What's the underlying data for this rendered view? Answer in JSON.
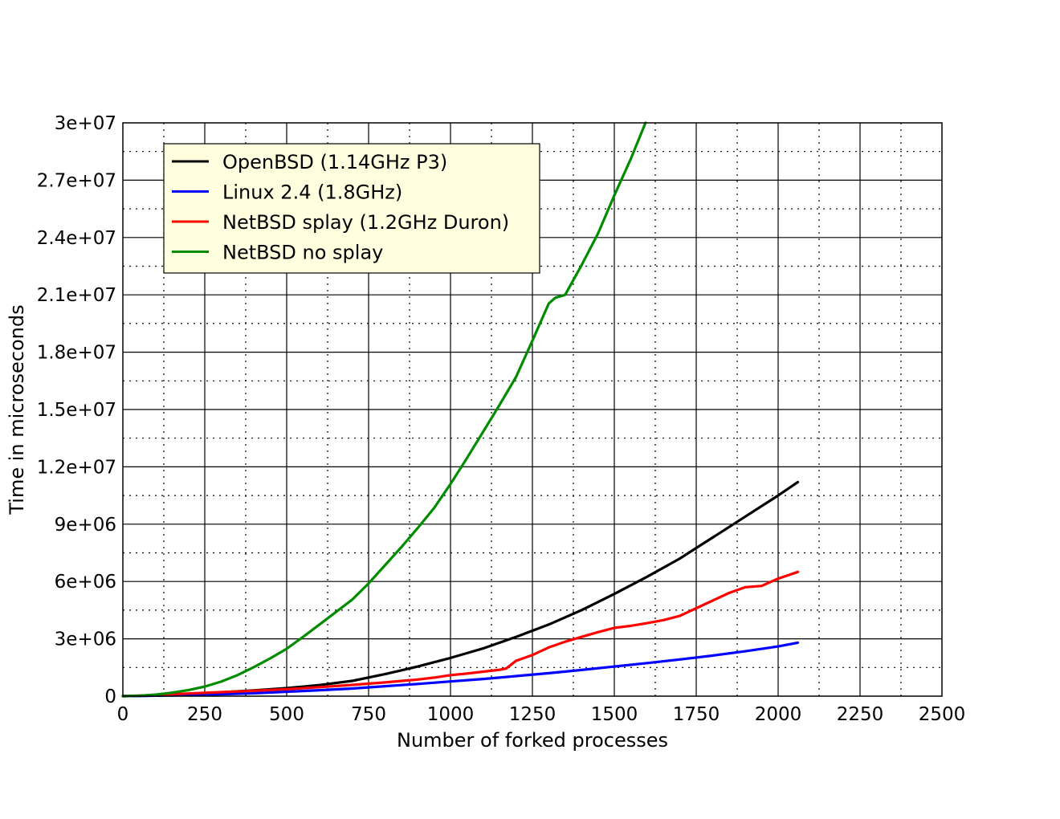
{
  "chart_data": {
    "type": "line",
    "title": "",
    "xlabel": "Number of forked processes",
    "ylabel": "Time in microseconds",
    "xlim": [
      0,
      2500
    ],
    "ylim": [
      0,
      30000000
    ],
    "grid": true,
    "legend_position": "top-left",
    "x_ticks": [
      "0",
      "250",
      "500",
      "750",
      "1000",
      "1250",
      "1500",
      "1750",
      "2000",
      "2250",
      "2500"
    ],
    "y_ticks": [
      "0",
      "3e+06",
      "6e+06",
      "9e+06",
      "1.2e+07",
      "1.5e+07",
      "1.8e+07",
      "2.1e+07",
      "2.4e+07",
      "2.7e+07",
      "3e+07"
    ],
    "series": [
      {
        "name": "OpenBSD (1.14GHz P3)",
        "color": "#000000",
        "points": [
          [
            0,
            0
          ],
          [
            100,
            30000
          ],
          [
            200,
            100000
          ],
          [
            300,
            200000
          ],
          [
            400,
            300000
          ],
          [
            500,
            420000
          ],
          [
            600,
            580000
          ],
          [
            700,
            800000
          ],
          [
            800,
            1150000
          ],
          [
            900,
            1550000
          ],
          [
            1000,
            2000000
          ],
          [
            1100,
            2500000
          ],
          [
            1200,
            3100000
          ],
          [
            1300,
            3750000
          ],
          [
            1400,
            4500000
          ],
          [
            1500,
            5350000
          ],
          [
            1600,
            6250000
          ],
          [
            1700,
            7200000
          ],
          [
            1750,
            7750000
          ],
          [
            1800,
            8300000
          ],
          [
            1900,
            9400000
          ],
          [
            2000,
            10500000
          ],
          [
            2060,
            11200000
          ]
        ]
      },
      {
        "name": "Linux 2.4 (1.8GHz)",
        "color": "#0000ff",
        "points": [
          [
            0,
            0
          ],
          [
            200,
            50000
          ],
          [
            400,
            150000
          ],
          [
            500,
            230000
          ],
          [
            600,
            310000
          ],
          [
            700,
            400000
          ],
          [
            800,
            520000
          ],
          [
            900,
            640000
          ],
          [
            1000,
            770000
          ],
          [
            1100,
            900000
          ],
          [
            1200,
            1050000
          ],
          [
            1300,
            1200000
          ],
          [
            1400,
            1370000
          ],
          [
            1500,
            1550000
          ],
          [
            1600,
            1730000
          ],
          [
            1700,
            1920000
          ],
          [
            1800,
            2120000
          ],
          [
            1900,
            2350000
          ],
          [
            2000,
            2600000
          ],
          [
            2060,
            2800000
          ]
        ]
      },
      {
        "name": "NetBSD splay (1.2GHz Duron)",
        "color": "#ff0000",
        "points": [
          [
            0,
            0
          ],
          [
            100,
            60000
          ],
          [
            200,
            140000
          ],
          [
            300,
            210000
          ],
          [
            400,
            280000
          ],
          [
            500,
            360000
          ],
          [
            600,
            470000
          ],
          [
            700,
            590000
          ],
          [
            800,
            720000
          ],
          [
            900,
            870000
          ],
          [
            950,
            970000
          ],
          [
            1000,
            1100000
          ],
          [
            1050,
            1180000
          ],
          [
            1100,
            1280000
          ],
          [
            1150,
            1380000
          ],
          [
            1170,
            1450000
          ],
          [
            1200,
            1850000
          ],
          [
            1250,
            2150000
          ],
          [
            1300,
            2550000
          ],
          [
            1350,
            2850000
          ],
          [
            1400,
            3100000
          ],
          [
            1450,
            3350000
          ],
          [
            1500,
            3570000
          ],
          [
            1550,
            3680000
          ],
          [
            1600,
            3820000
          ],
          [
            1650,
            3980000
          ],
          [
            1700,
            4200000
          ],
          [
            1750,
            4600000
          ],
          [
            1800,
            5000000
          ],
          [
            1850,
            5400000
          ],
          [
            1900,
            5700000
          ],
          [
            1950,
            5770000
          ],
          [
            2000,
            6150000
          ],
          [
            2060,
            6500000
          ]
        ]
      },
      {
        "name": "NetBSD no splay",
        "color": "#008c00",
        "points": [
          [
            0,
            0
          ],
          [
            50,
            20000
          ],
          [
            100,
            80000
          ],
          [
            150,
            180000
          ],
          [
            200,
            320000
          ],
          [
            250,
            500000
          ],
          [
            300,
            760000
          ],
          [
            350,
            1100000
          ],
          [
            400,
            1520000
          ],
          [
            450,
            1980000
          ],
          [
            500,
            2480000
          ],
          [
            550,
            3100000
          ],
          [
            600,
            3750000
          ],
          [
            650,
            4400000
          ],
          [
            700,
            5050000
          ],
          [
            750,
            5900000
          ],
          [
            800,
            6850000
          ],
          [
            850,
            7800000
          ],
          [
            900,
            8800000
          ],
          [
            950,
            9850000
          ],
          [
            1000,
            11100000
          ],
          [
            1050,
            12450000
          ],
          [
            1100,
            13850000
          ],
          [
            1150,
            15250000
          ],
          [
            1200,
            16700000
          ],
          [
            1250,
            18600000
          ],
          [
            1300,
            20550000
          ],
          [
            1320,
            20850000
          ],
          [
            1350,
            21000000
          ],
          [
            1400,
            22550000
          ],
          [
            1450,
            24200000
          ],
          [
            1500,
            26200000
          ],
          [
            1550,
            28100000
          ],
          [
            1595,
            30000000
          ]
        ]
      }
    ]
  }
}
